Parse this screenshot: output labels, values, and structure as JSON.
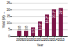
{
  "chart_data": {
    "type": "bar",
    "xlabel": "Year",
    "ylabel": "Yield (%)",
    "categories": [
      "2009",
      "2010",
      "2011",
      "2012",
      "2013",
      "2014",
      "2015"
    ],
    "values": [
      3.8,
      3.8,
      6.5,
      10.9,
      16.2,
      20.1,
      21.0
    ],
    "value_labels": [
      "3.8",
      "3.8",
      "6.5",
      "10.9*",
      "16.2*",
      "20.1*",
      "21*"
    ],
    "data_labels": true,
    "color": "#7B1648",
    "ylim": [
      0,
      25
    ],
    "yticks": [
      0,
      5,
      10,
      15,
      20,
      25
    ],
    "grid": true
  }
}
